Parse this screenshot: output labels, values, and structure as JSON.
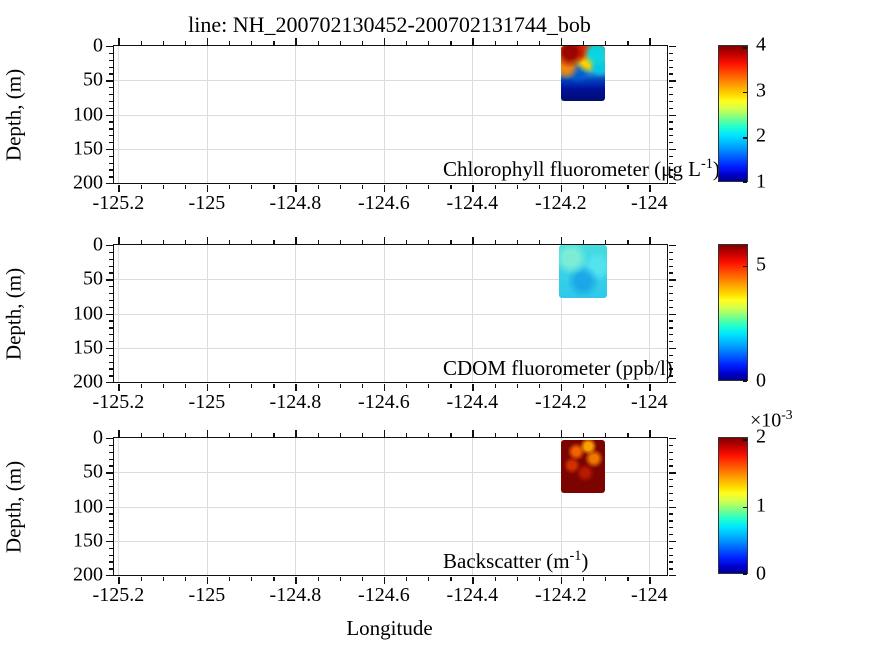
{
  "title": "line: NH_200702130452-200702131744_bob",
  "xlabel": "Longitude",
  "ylabel": "Depth, (m)",
  "colors": {
    "spine": "#111111",
    "grid": "#dcdcdc",
    "text": "#000000",
    "colorbar_border": "#333333",
    "colormap": "jet"
  },
  "chart_data": [
    {
      "id": "chlorophyll",
      "type": "heatmap",
      "colormap": "jet",
      "label_parts": [
        {
          "text": "Chlorophyll fluorometer (μg L"
        },
        {
          "text": "-1",
          "sup": true
        },
        {
          "text": ")"
        }
      ],
      "label_plain": "Chlorophyll fluorometer (μg L-1)",
      "x": {
        "range": [
          -125.21,
          -123.96
        ],
        "ticks": [
          -125.2,
          -125,
          -124.8,
          -124.6,
          -124.4,
          -124.2,
          -124
        ],
        "tick_labels": [
          "-125.2",
          "-125",
          "-124.8",
          "-124.6",
          "-124.4",
          "-124.2",
          "-124"
        ],
        "minor_step": 0.05
      },
      "y": {
        "label": "Depth, (m)",
        "range": [
          0,
          200
        ],
        "ticks": [
          0,
          50,
          100,
          150,
          200
        ],
        "tick_labels": [
          "0",
          "50",
          "100",
          "150",
          "200"
        ],
        "minor_step": 10,
        "reversed": true
      },
      "colorbar": {
        "range": [
          1,
          4
        ],
        "ticks": [
          {
            "value": 4,
            "label": "4"
          },
          {
            "value": 3,
            "label": "3"
          },
          {
            "value": 2,
            "label": "2"
          },
          {
            "value": 1,
            "label": "1"
          }
        ]
      },
      "data_summary": {
        "longitude_extent": [
          -124.2,
          -124.1
        ],
        "depth_extent": [
          0,
          80
        ],
        "description": "turbulent multicolor patch: dark red/orange filaments upper-left, yellow mid, cyan eddies on right, dark blue below ~40 m; values span ~1-4 ug/L"
      }
    },
    {
      "id": "cdom",
      "type": "heatmap",
      "colormap": "jet",
      "label_parts": [
        {
          "text": "CDOM fluorometer (ppb/l)"
        }
      ],
      "label_plain": "CDOM fluorometer (ppb/l)",
      "x": {
        "range": [
          -125.21,
          -123.96
        ],
        "ticks": [
          -125.2,
          -125,
          -124.8,
          -124.6,
          -124.4,
          -124.2,
          -124
        ],
        "tick_labels": [
          "-125.2",
          "-125",
          "-124.8",
          "-124.6",
          "-124.4",
          "-124.2",
          "-124"
        ],
        "minor_step": 0.05
      },
      "y": {
        "label": "Depth, (m)",
        "range": [
          0,
          200
        ],
        "ticks": [
          0,
          50,
          100,
          150,
          200
        ],
        "tick_labels": [
          "0",
          "50",
          "100",
          "150",
          "200"
        ],
        "minor_step": 10,
        "reversed": true
      },
      "colorbar": {
        "range": [
          0,
          5.9
        ],
        "ticks": [
          {
            "value": 5,
            "label": "5"
          },
          {
            "value": 0,
            "label": "0"
          }
        ]
      },
      "data_summary": {
        "longitude_extent": [
          -124.205,
          -124.095
        ],
        "depth_extent": [
          0,
          78
        ],
        "description": "nearly uniform cyan / light-blue patch (~2.5-3 ppb/l), slightly darker blue blotch at mid-depth"
      }
    },
    {
      "id": "backscatter",
      "type": "heatmap",
      "colormap": "jet",
      "label_parts": [
        {
          "text": "Backscatter (m"
        },
        {
          "text": "-1",
          "sup": true
        },
        {
          "text": ")"
        }
      ],
      "label_plain": "Backscatter (m-1)",
      "x": {
        "range": [
          -125.21,
          -123.96
        ],
        "ticks": [
          -125.2,
          -125,
          -124.8,
          -124.6,
          -124.4,
          -124.2,
          -124
        ],
        "tick_labels": [
          "-125.2",
          "-125",
          "-124.8",
          "-124.6",
          "-124.4",
          "-124.2",
          "-124"
        ],
        "minor_step": 0.05
      },
      "y": {
        "label": "Depth, (m)",
        "range": [
          0,
          200
        ],
        "ticks": [
          0,
          50,
          100,
          150,
          200
        ],
        "tick_labels": [
          "0",
          "50",
          "100",
          "150",
          "200"
        ],
        "minor_step": 10,
        "reversed": true
      },
      "colorbar": {
        "range": [
          0,
          0.002
        ],
        "multiplier_parts": [
          {
            "text": "×10"
          },
          {
            "text": "-3",
            "sup": true
          }
        ],
        "ticks": [
          {
            "value": 0.002,
            "label": "2"
          },
          {
            "value": 0.001,
            "label": "1"
          },
          {
            "value": 0,
            "label": "0"
          }
        ]
      },
      "data_summary": {
        "longitude_extent": [
          -124.2,
          -124.1
        ],
        "depth_extent": [
          3,
          80
        ],
        "description": "saturated dark-red patch (~2e-3 m^-1) with orange/yellow swirls near the surface"
      }
    }
  ]
}
